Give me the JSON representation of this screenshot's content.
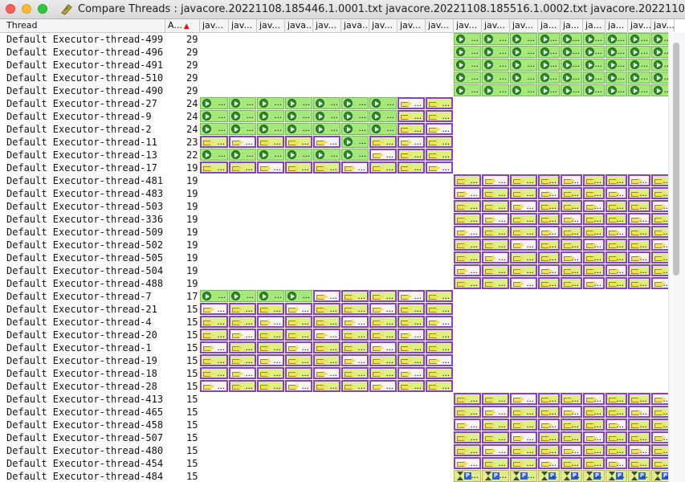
{
  "window": {
    "title": "Compare Threads : javacore.20221108.185446.1.0001.txt javacore.20221108.185516.1.0002.txt javacore.20221108.185"
  },
  "table": {
    "columns": {
      "thread": "Thread",
      "count": "A...",
      "files": [
        "jav...",
        "jav...",
        "jav...",
        "java...",
        "jav...",
        "java...",
        "jav...",
        "jav...",
        "jav...",
        "jav...",
        "jav...",
        "jav...",
        "ja...",
        "ja...",
        "ja...",
        "ja...",
        "jav...",
        "jav..."
      ]
    },
    "rows": [
      {
        "name": "Default Executor-thread-499",
        "count": "29",
        "group": "B",
        "pattern": "RRRRRRRRR"
      },
      {
        "name": "Default Executor-thread-496",
        "count": "29",
        "group": "B",
        "pattern": "RRRRRRRRR"
      },
      {
        "name": "Default Executor-thread-491",
        "count": "29",
        "group": "B",
        "pattern": "RRRRRRRRR"
      },
      {
        "name": "Default Executor-thread-510",
        "count": "29",
        "group": "B",
        "pattern": "RRRRRRRRR"
      },
      {
        "name": "Default Executor-thread-490",
        "count": "29",
        "group": "B",
        "pattern": "RRRRRRRRR"
      },
      {
        "name": "Default Executor-thread-27",
        "count": "24",
        "group": "A",
        "pattern": "RRRRRRRWW"
      },
      {
        "name": "Default Executor-thread-9",
        "count": "24",
        "group": "A",
        "pattern": "RRRRRRRWW"
      },
      {
        "name": "Default Executor-thread-2",
        "count": "24",
        "group": "A",
        "pattern": "RRRRRRRWW"
      },
      {
        "name": "Default Executor-thread-11",
        "count": "23",
        "group": "A",
        "pattern": "WWWWWRWWW"
      },
      {
        "name": "Default Executor-thread-13",
        "count": "22",
        "group": "A",
        "pattern": "RRRRRRWWW"
      },
      {
        "name": "Default Executor-thread-17",
        "count": "19",
        "group": "A",
        "pattern": "WWWWWWWWW"
      },
      {
        "name": "Default Executor-thread-481",
        "count": "19",
        "group": "B",
        "pattern": "WWWWWWWWW"
      },
      {
        "name": "Default Executor-thread-483",
        "count": "19",
        "group": "B",
        "pattern": "WWWWWWWWW"
      },
      {
        "name": "Default Executor-thread-503",
        "count": "19",
        "group": "B",
        "pattern": "WWWWWWWWW"
      },
      {
        "name": "Default Executor-thread-336",
        "count": "19",
        "group": "B",
        "pattern": "WWWWWWWWW"
      },
      {
        "name": "Default Executor-thread-509",
        "count": "19",
        "group": "B",
        "pattern": "WWWWWWWWW"
      },
      {
        "name": "Default Executor-thread-502",
        "count": "19",
        "group": "B",
        "pattern": "WWWWWWWWW"
      },
      {
        "name": "Default Executor-thread-505",
        "count": "19",
        "group": "B",
        "pattern": "WWWWWWWWW"
      },
      {
        "name": "Default Executor-thread-504",
        "count": "19",
        "group": "B",
        "pattern": "WWWWWWWWW"
      },
      {
        "name": "Default Executor-thread-488",
        "count": "19",
        "group": "B",
        "pattern": "WWWWWWWWW"
      },
      {
        "name": "Default Executor-thread-7",
        "count": "17",
        "group": "A",
        "pattern": "RRRRWWWWW"
      },
      {
        "name": "Default Executor-thread-21",
        "count": "15",
        "group": "A",
        "pattern": "WWWWWWWWW"
      },
      {
        "name": "Default Executor-thread-4",
        "count": "15",
        "group": "A",
        "pattern": "WWWWWWWWW"
      },
      {
        "name": "Default Executor-thread-20",
        "count": "15",
        "group": "A",
        "pattern": "WWWWWWWWW"
      },
      {
        "name": "Default Executor-thread-1",
        "count": "15",
        "group": "A",
        "pattern": "WWWWWWWWW"
      },
      {
        "name": "Default Executor-thread-19",
        "count": "15",
        "group": "A",
        "pattern": "WWWWWWWWW"
      },
      {
        "name": "Default Executor-thread-18",
        "count": "15",
        "group": "A",
        "pattern": "WWWWWWWWW"
      },
      {
        "name": "Default Executor-thread-28",
        "count": "15",
        "group": "A",
        "pattern": "WWWWWWWWW"
      },
      {
        "name": "Default Executor-thread-413",
        "count": "15",
        "group": "B",
        "pattern": "WWWWWWWWW"
      },
      {
        "name": "Default Executor-thread-465",
        "count": "15",
        "group": "B",
        "pattern": "WWWWWWWWW"
      },
      {
        "name": "Default Executor-thread-458",
        "count": "15",
        "group": "B",
        "pattern": "WWWWWWWWW"
      },
      {
        "name": "Default Executor-thread-507",
        "count": "15",
        "group": "B",
        "pattern": "WWWWWWWWW"
      },
      {
        "name": "Default Executor-thread-480",
        "count": "15",
        "group": "B",
        "pattern": "WWWWWWWWW"
      },
      {
        "name": "Default Executor-thread-454",
        "count": "15",
        "group": "B",
        "pattern": "WWWWWWWWW"
      },
      {
        "name": "Default Executor-thread-484",
        "count": "15",
        "group": "B",
        "pattern": "PPPPPPPPP"
      }
    ]
  },
  "icons": {
    "running": "running-icon",
    "waiting": "waiting-arrow-icon",
    "parked": "parked-hourglass-icon"
  },
  "cell_text": "..."
}
